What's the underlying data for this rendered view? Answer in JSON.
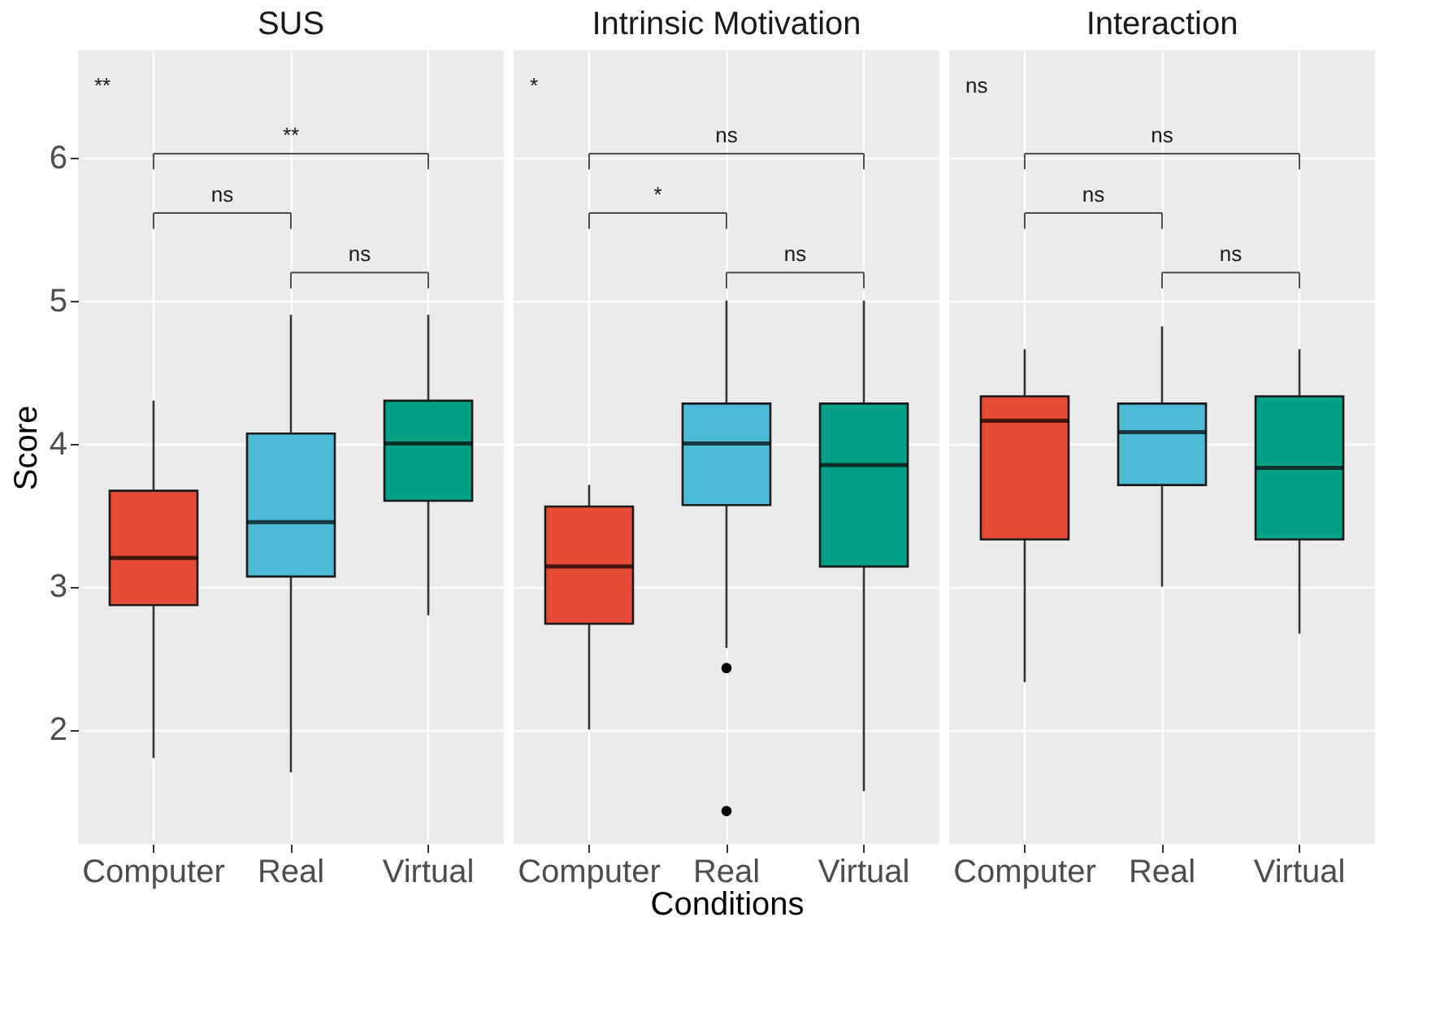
{
  "chart_data": [
    {
      "type": "box",
      "title": "SUS",
      "ylabel": "Score",
      "categories": [
        "Computer",
        "Real",
        "Virtual"
      ],
      "colors": [
        "#e64b35",
        "#4dbbd5",
        "#00a087"
      ],
      "ylim": [
        1.2,
        6.75
      ],
      "yticks": [
        2,
        3,
        4,
        5,
        6
      ],
      "grid": true,
      "boxes": [
        {
          "low": 1.8,
          "q1": 2.87,
          "median": 3.2,
          "q3": 3.67,
          "high": 4.3
        },
        {
          "low": 1.7,
          "q1": 3.07,
          "median": 3.45,
          "q3": 4.07,
          "high": 4.9
        },
        {
          "low": 2.8,
          "q1": 3.6,
          "median": 4.0,
          "q3": 4.3,
          "high": 4.9
        }
      ],
      "annotations": [
        "**",
        "**",
        "ns",
        "ns"
      ]
    },
    {
      "type": "box",
      "title": "Intrinsic Motivation",
      "xlabel": "Conditions",
      "categories": [
        "Computer",
        "Real",
        "Virtual"
      ],
      "colors": [
        "#e64b35",
        "#4dbbd5",
        "#00a087"
      ],
      "ylim": [
        1.2,
        6.75
      ],
      "yticks": [
        2,
        3,
        4,
        5,
        6
      ],
      "grid": true,
      "tick_labels": "x",
      "boxes": [
        {
          "low": 2.0,
          "q1": 2.74,
          "median": 3.14,
          "q3": 3.56,
          "high": 3.71
        },
        {
          "low": 2.57,
          "q1": 3.57,
          "median": 4.0,
          "q3": 4.28,
          "high": 5.0,
          "outliers": [
            2.43,
            1.43
          ]
        },
        {
          "low": 1.57,
          "q1": 3.14,
          "median": 3.85,
          "q3": 4.28,
          "high": 5.0
        }
      ],
      "annotations": [
        "*",
        "ns",
        "*",
        "ns"
      ]
    },
    {
      "type": "box",
      "title": "Interaction",
      "categories": [
        "Computer",
        "Real",
        "Virtual"
      ],
      "colors": [
        "#e64b35",
        "#4dbbd5",
        "#00a087"
      ],
      "ylim": [
        1.2,
        6.75
      ],
      "yticks": [
        2,
        3,
        4,
        5,
        6
      ],
      "grid": true,
      "tick_labels": "x",
      "boxes": [
        {
          "low": 2.33,
          "q1": 3.33,
          "median": 4.16,
          "q3": 4.33,
          "high": 4.66
        },
        {
          "low": 3.0,
          "q1": 3.71,
          "median": 4.08,
          "q3": 4.28,
          "high": 4.82
        },
        {
          "low": 2.67,
          "q1": 3.33,
          "median": 3.83,
          "q3": 4.33,
          "high": 4.66
        }
      ],
      "annotations": [
        "ns",
        "ns",
        "ns",
        "ns"
      ]
    }
  ]
}
